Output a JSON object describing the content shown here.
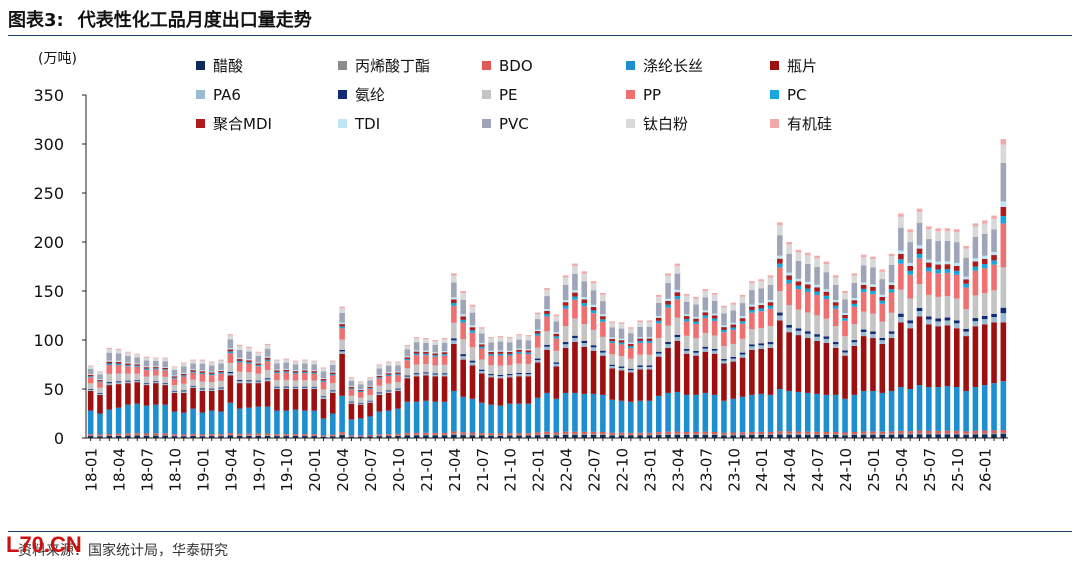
{
  "header": {
    "figure_number": "图表3:",
    "title": "代表性化工品月度出口量走势"
  },
  "footer": {
    "source": "资料来源：国家统计局，华泰研究",
    "watermark": "L70.CN"
  },
  "chart_data": {
    "type": "bar",
    "stacked": true,
    "unit_label": "(万吨)",
    "ylim": [
      0,
      350
    ],
    "yticks": [
      0,
      50,
      100,
      150,
      200,
      250,
      300,
      350
    ],
    "grid": false,
    "legend_position": "top",
    "legend_columns": 5,
    "x_tick_labels": [
      "18-01",
      "18-04",
      "18-07",
      "18-10",
      "19-01",
      "19-04",
      "19-07",
      "19-10",
      "20-01",
      "20-04",
      "20-07",
      "20-10",
      "21-01",
      "21-04",
      "21-07",
      "21-10",
      "22-01",
      "22-04",
      "22-07",
      "22-10",
      "23-01",
      "23-04",
      "23-07",
      "23-10",
      "24-01",
      "24-04",
      "24-07",
      "24-10",
      "25-01",
      "25-04",
      "25-07",
      "25-10",
      "26-01"
    ],
    "categories": [
      "18-01",
      "18-02",
      "18-03",
      "18-04",
      "18-05",
      "18-06",
      "18-07",
      "18-08",
      "18-09",
      "18-10",
      "18-11",
      "18-12",
      "19-01",
      "19-02",
      "19-03",
      "19-04",
      "19-05",
      "19-06",
      "19-07",
      "19-08",
      "19-09",
      "19-10",
      "19-11",
      "19-12",
      "20-01",
      "20-02",
      "20-03",
      "20-04",
      "20-05",
      "20-06",
      "20-07",
      "20-08",
      "20-09",
      "20-10",
      "20-11",
      "20-12",
      "21-01",
      "21-02",
      "21-03",
      "21-04",
      "21-05",
      "21-06",
      "21-07",
      "21-08",
      "21-09",
      "21-10",
      "21-11",
      "21-12",
      "22-01",
      "22-02",
      "22-03",
      "22-04",
      "22-05",
      "22-06",
      "22-07",
      "22-08",
      "22-09",
      "22-10",
      "22-11",
      "22-12",
      "23-01",
      "23-02",
      "23-03",
      "23-04",
      "23-05",
      "23-06",
      "23-07",
      "23-08",
      "23-09",
      "23-10",
      "23-11",
      "23-12",
      "24-01",
      "24-02",
      "24-03",
      "24-04",
      "24-05",
      "24-06",
      "24-07",
      "24-08",
      "24-09",
      "24-10",
      "24-11",
      "24-12",
      "25-01",
      "25-02",
      "25-03",
      "25-04",
      "25-05",
      "25-06",
      "25-07",
      "25-08",
      "25-09",
      "25-10",
      "25-11",
      "25-12",
      "26-01",
      "26-02",
      "26-03"
    ],
    "series": [
      {
        "name": "醋酸",
        "color": "#0d2a5c"
      },
      {
        "name": "丙烯酸丁酯",
        "color": "#8c8c8c"
      },
      {
        "name": "BDO",
        "color": "#e05a55"
      },
      {
        "name": "涤纶长丝",
        "color": "#1d8fd0"
      },
      {
        "name": "瓶片",
        "color": "#9e1010"
      },
      {
        "name": "PA6",
        "color": "#9bbbd3"
      },
      {
        "name": "氨纶",
        "color": "#102c78"
      },
      {
        "name": "PE",
        "color": "#c4c4c4"
      },
      {
        "name": "PP",
        "color": "#f07070"
      },
      {
        "name": "PC",
        "color": "#16a6e0"
      },
      {
        "name": "聚合MDI",
        "color": "#b01c1c"
      },
      {
        "name": "TDI",
        "color": "#bfe6f7"
      },
      {
        "name": "PVC",
        "color": "#9ea5b8"
      },
      {
        "name": "钛白粉",
        "color": "#d9d9d9"
      },
      {
        "name": "有机硅",
        "color": "#f4a9a9"
      }
    ],
    "totals": [
      74,
      68,
      92,
      91,
      88,
      86,
      83,
      82,
      82,
      73,
      77,
      80,
      80,
      78,
      80,
      106,
      95,
      93,
      88,
      96,
      80,
      81,
      79,
      80,
      79,
      72,
      79,
      134,
      62,
      58,
      62,
      75,
      78,
      78,
      95,
      103,
      102,
      100,
      102,
      168,
      150,
      136,
      113,
      103,
      104,
      103,
      106,
      105,
      128,
      153,
      126,
      166,
      178,
      170,
      160,
      148,
      119,
      118,
      113,
      120,
      120,
      146,
      168,
      178,
      147,
      144,
      152,
      148,
      135,
      138,
      146,
      160,
      162,
      166,
      220,
      200,
      192,
      189,
      186,
      180,
      166,
      150,
      168,
      187,
      185,
      172,
      188,
      229,
      213,
      234,
      216,
      214,
      214,
      213,
      196,
      219,
      222,
      227,
      305
    ],
    "base_values": [
      28,
      25,
      29,
      31,
      34,
      35,
      33,
      34,
      34,
      27,
      26,
      30,
      26,
      28,
      27,
      36,
      30,
      31,
      32,
      32,
      28,
      28,
      29,
      28,
      28,
      20,
      25,
      43,
      19,
      20,
      22,
      27,
      28,
      30,
      37,
      37,
      38,
      37,
      37,
      48,
      42,
      40,
      36,
      34,
      33,
      35,
      35,
      35,
      41,
      46,
      40,
      46,
      46,
      45,
      45,
      44,
      39,
      38,
      37,
      38,
      38,
      43,
      46,
      47,
      44,
      44,
      46,
      44,
      38,
      40,
      42,
      44,
      45,
      44,
      50,
      48,
      47,
      46,
      45,
      44,
      44,
      40,
      44,
      48,
      48,
      46,
      48,
      52,
      50,
      54,
      52,
      52,
      53,
      52,
      48,
      52,
      54,
      56,
      58
    ],
    "bottle_values": [
      20,
      19,
      25,
      24,
      22,
      22,
      21,
      22,
      20,
      19,
      20,
      21,
      22,
      20,
      22,
      28,
      26,
      25,
      24,
      26,
      22,
      22,
      21,
      22,
      22,
      20,
      21,
      43,
      16,
      14,
      14,
      17,
      18,
      18,
      24,
      26,
      26,
      26,
      26,
      48,
      38,
      34,
      30,
      28,
      28,
      27,
      28,
      28,
      36,
      44,
      33,
      46,
      52,
      48,
      44,
      40,
      32,
      31,
      30,
      32,
      32,
      40,
      46,
      52,
      42,
      40,
      42,
      42,
      38,
      38,
      40,
      46,
      46,
      48,
      70,
      60,
      58,
      56,
      54,
      53,
      48,
      44,
      50,
      56,
      54,
      50,
      54,
      66,
      62,
      70,
      64,
      62,
      62,
      60,
      56,
      62,
      62,
      62,
      60
    ]
  }
}
